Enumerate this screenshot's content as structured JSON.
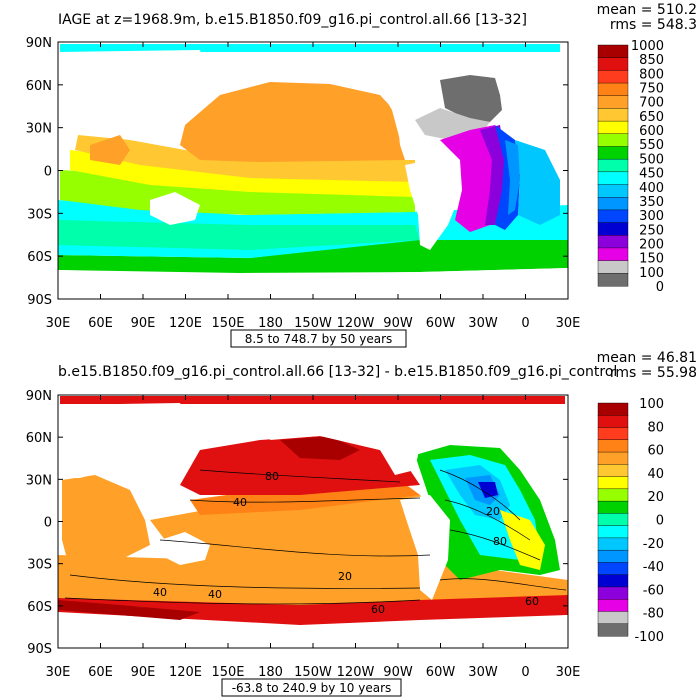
{
  "chart_data": [
    {
      "type": "heatmap",
      "title": "IAGE at z=1968.9m, b.e15.B1850.f09_g16.pi_control.all.66 [13-32]",
      "mean_label": "mean = 510.2",
      "rms_label": "rms = 548.3",
      "range_note": "8.5 to 748.7 by 50 years",
      "x_ticks": [
        "30E",
        "60E",
        "90E",
        "120E",
        "150E",
        "180",
        "150W",
        "120W",
        "90W",
        "60W",
        "30W",
        "0",
        "30E"
      ],
      "y_ticks": [
        "90N",
        "60N",
        "30N",
        "0",
        "30S",
        "60S",
        "90S"
      ],
      "colorbar_labels": [
        "1000",
        "850",
        "800",
        "750",
        "700",
        "650",
        "600",
        "550",
        "500",
        "450",
        "400",
        "350",
        "300",
        "250",
        "200",
        "150",
        "100",
        "0"
      ],
      "colors": [
        "#a80000",
        "#e01010",
        "#ff3c1e",
        "#ff8216",
        "#ffa028",
        "#ffc832",
        "#ffff00",
        "#96ff00",
        "#00d200",
        "#00ffaa",
        "#00ffff",
        "#00c8ff",
        "#0096ff",
        "#0046ff",
        "#0000d2",
        "#8c00dc",
        "#e600e6",
        "#c8c8c8",
        "#6e6e6e"
      ]
    },
    {
      "type": "heatmap",
      "title": "b.e15.B1850.f09_g16.pi_control.all.66 [13-32] - b.e15.B1850.f09_g16.pi_control",
      "mean_label": "mean = 46.81",
      "rms_label": "rms = 55.98",
      "range_note": "-63.8 to 240.9 by 10 years",
      "x_ticks": [
        "30E",
        "60E",
        "90E",
        "120E",
        "150E",
        "180",
        "150W",
        "120W",
        "90W",
        "60W",
        "30W",
        "0",
        "30E"
      ],
      "y_ticks": [
        "90N",
        "60N",
        "30N",
        "0",
        "30S",
        "60S",
        "90S"
      ],
      "contour_labels": [
        "80",
        "40",
        "20",
        "40",
        "60",
        "40",
        "60",
        "80",
        "20"
      ],
      "colorbar_labels": [
        "100",
        "80",
        "60",
        "40",
        "20",
        "0",
        "-20",
        "-40",
        "-60",
        "-80",
        "-100"
      ],
      "colors": [
        "#a80000",
        "#e01010",
        "#ff3c1e",
        "#ff8216",
        "#ffa028",
        "#ffc832",
        "#ffff00",
        "#96ff00",
        "#00d200",
        "#00ffaa",
        "#00ffff",
        "#00c8ff",
        "#0096ff",
        "#0046ff",
        "#0000d2",
        "#8c00dc",
        "#e600e6",
        "#c8c8c8",
        "#6e6e6e"
      ]
    }
  ]
}
